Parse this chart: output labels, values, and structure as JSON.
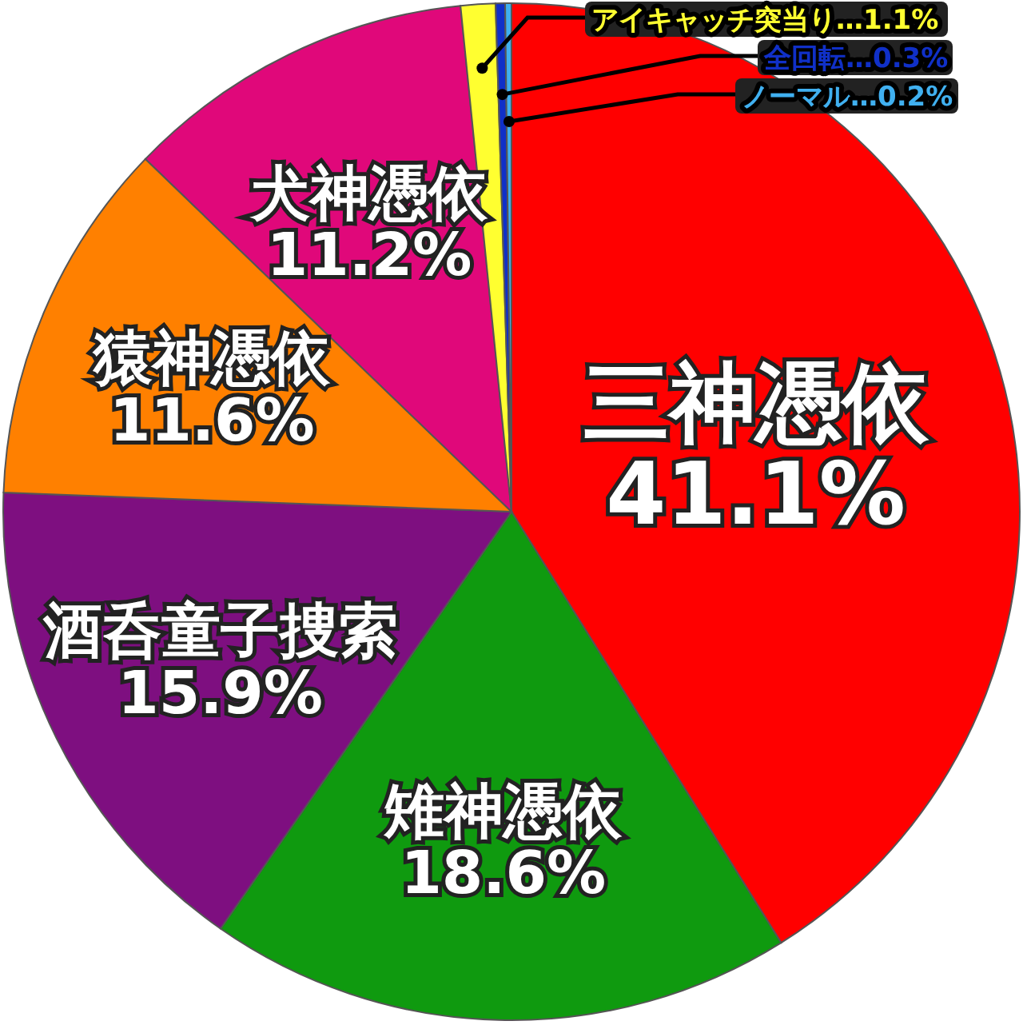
{
  "chart_data": {
    "type": "pie",
    "categories": [
      "三神憑依",
      "雉神憑依",
      "酒呑童子捜索",
      "猿神憑依",
      "犬神憑依",
      "アイキャッチ突当り",
      "全回転",
      "ノーマル"
    ],
    "values": [
      41.1,
      18.6,
      15.9,
      11.6,
      11.2,
      1.1,
      0.3,
      0.2
    ],
    "value_labels": [
      "41.1%",
      "18.6%",
      "15.9%",
      "11.6%",
      "11.2%",
      "…1.1%",
      "…0.3%",
      "…0.2%"
    ],
    "colors": [
      "#ff0000",
      "#0f9a0f",
      "#7e0f80",
      "#ff8000",
      "#e0087a",
      "#ffff30",
      "#1030c8",
      "#40b0f0"
    ],
    "legend": false
  }
}
